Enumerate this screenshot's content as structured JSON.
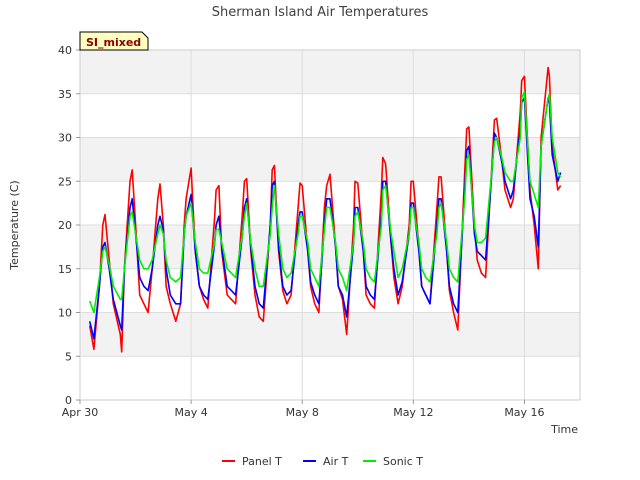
{
  "chart_data": {
    "type": "line",
    "title": "Sherman Island Air Temperatures",
    "xlabel": "Time",
    "ylabel": "Temperature (C)",
    "badge": "SI_mixed",
    "ylim": [
      0,
      40
    ],
    "yticks": [
      0,
      5,
      10,
      15,
      20,
      25,
      30,
      35,
      40
    ],
    "xlim": [
      0,
      18.0
    ],
    "xticks": [
      {
        "value": 0,
        "label": "Apr 30"
      },
      {
        "value": 4,
        "label": "May 4"
      },
      {
        "value": 8,
        "label": "May 8"
      },
      {
        "value": 12,
        "label": "May 12"
      },
      {
        "value": 16,
        "label": "May 16"
      }
    ],
    "x_unit": "days since Apr 30 00:00",
    "grid": true,
    "banded_background": true,
    "legend_position": "bottom-center",
    "series": [
      {
        "name": "Panel T",
        "color": "#ff0000",
        "x": [
          0.35,
          0.5,
          0.7,
          0.82,
          0.9,
          1.05,
          1.2,
          1.45,
          1.5,
          1.6,
          1.8,
          1.88,
          2.0,
          2.15,
          2.3,
          2.45,
          2.6,
          2.8,
          2.88,
          3.0,
          3.1,
          3.25,
          3.45,
          3.62,
          3.75,
          3.82,
          4.0,
          4.15,
          4.3,
          4.45,
          4.6,
          4.85,
          4.9,
          5.0,
          5.1,
          5.3,
          5.45,
          5.6,
          5.85,
          5.92,
          6.0,
          6.15,
          6.3,
          6.45,
          6.6,
          6.85,
          6.92,
          7.0,
          7.15,
          7.3,
          7.45,
          7.6,
          7.85,
          7.92,
          8.0,
          8.2,
          8.3,
          8.45,
          8.6,
          8.8,
          8.88,
          9.0,
          9.2,
          9.3,
          9.45,
          9.6,
          9.85,
          9.9,
          10.0,
          10.2,
          10.3,
          10.45,
          10.6,
          10.85,
          10.9,
          11.0,
          11.2,
          11.3,
          11.45,
          11.6,
          11.85,
          11.92,
          12.0,
          12.2,
          12.3,
          12.45,
          12.6,
          12.85,
          12.92,
          13.0,
          13.2,
          13.3,
          13.45,
          13.6,
          13.85,
          13.92,
          14.0,
          14.2,
          14.3,
          14.45,
          14.6,
          14.85,
          14.92,
          15.0,
          15.2,
          15.3,
          15.5,
          15.6,
          15.85,
          15.9,
          16.0,
          16.2,
          16.35,
          16.5,
          16.6,
          16.85,
          16.9,
          17.0,
          17.2,
          17.3
        ],
        "y": [
          8.5,
          5.8,
          13.0,
          20.0,
          21.2,
          16.0,
          11.0,
          7.5,
          5.5,
          15.0,
          25.0,
          26.3,
          20.0,
          12.0,
          11.0,
          10.0,
          15.0,
          23.0,
          24.7,
          20.0,
          13.0,
          11.0,
          9.0,
          11.0,
          20.0,
          23.0,
          26.5,
          17.0,
          13.0,
          11.5,
          10.5,
          21.0,
          24.0,
          24.5,
          17.0,
          12.0,
          11.5,
          11.0,
          21.5,
          25.0,
          25.3,
          17.0,
          12.0,
          9.5,
          9.0,
          20.0,
          26.3,
          26.8,
          17.0,
          12.5,
          11.0,
          12.0,
          22.0,
          24.8,
          24.5,
          17.0,
          13.0,
          11.0,
          10.0,
          22.0,
          24.5,
          25.8,
          17.5,
          13.0,
          11.5,
          7.5,
          20.0,
          25.0,
          24.8,
          17.0,
          12.0,
          11.0,
          10.5,
          24.0,
          27.7,
          27.0,
          18.0,
          14.0,
          11.0,
          13.0,
          20.0,
          25.0,
          25.0,
          17.5,
          13.0,
          12.0,
          11.0,
          22.0,
          25.5,
          25.5,
          17.0,
          12.5,
          10.0,
          8.0,
          26.0,
          31.0,
          31.2,
          20.0,
          16.0,
          14.5,
          14.0,
          28.0,
          32.0,
          32.2,
          27.0,
          24.0,
          22.0,
          23.0,
          33.0,
          36.5,
          37.0,
          24.0,
          20.0,
          15.0,
          30.0,
          38.0,
          37.0,
          29.0,
          24.0,
          24.5
        ]
      },
      {
        "name": "Air T",
        "color": "#0000ff",
        "x": [
          0.35,
          0.5,
          0.7,
          0.82,
          0.9,
          1.05,
          1.2,
          1.45,
          1.5,
          1.6,
          1.8,
          1.88,
          2.0,
          2.15,
          2.3,
          2.45,
          2.6,
          2.8,
          2.88,
          3.0,
          3.1,
          3.25,
          3.45,
          3.62,
          3.75,
          3.82,
          4.0,
          4.15,
          4.3,
          4.45,
          4.6,
          4.85,
          4.9,
          5.0,
          5.1,
          5.3,
          5.45,
          5.6,
          5.85,
          5.92,
          6.0,
          6.15,
          6.3,
          6.45,
          6.6,
          6.85,
          6.92,
          7.0,
          7.15,
          7.3,
          7.45,
          7.6,
          7.85,
          7.92,
          8.0,
          8.2,
          8.3,
          8.45,
          8.6,
          8.8,
          8.88,
          9.0,
          9.2,
          9.3,
          9.45,
          9.6,
          9.85,
          9.9,
          10.0,
          10.2,
          10.3,
          10.45,
          10.6,
          10.85,
          10.9,
          11.0,
          11.2,
          11.3,
          11.45,
          11.6,
          11.85,
          11.92,
          12.0,
          12.2,
          12.3,
          12.45,
          12.6,
          12.85,
          12.92,
          13.0,
          13.2,
          13.3,
          13.45,
          13.6,
          13.85,
          13.92,
          14.0,
          14.2,
          14.3,
          14.45,
          14.6,
          14.85,
          14.92,
          15.0,
          15.2,
          15.3,
          15.5,
          15.6,
          15.85,
          15.9,
          16.0,
          16.2,
          16.35,
          16.5,
          16.6,
          16.85,
          16.9,
          17.0,
          17.2,
          17.3
        ],
        "y": [
          9.0,
          7.0,
          13.0,
          17.5,
          18.0,
          15.0,
          11.5,
          8.5,
          8.0,
          15.0,
          22.0,
          23.0,
          19.0,
          14.0,
          13.0,
          12.5,
          15.0,
          20.0,
          21.0,
          19.5,
          15.0,
          12.0,
          11.0,
          11.0,
          19.0,
          21.0,
          23.5,
          17.0,
          13.0,
          12.0,
          11.5,
          18.0,
          20.0,
          21.0,
          17.5,
          13.0,
          12.5,
          12.0,
          19.0,
          22.0,
          23.0,
          17.5,
          13.0,
          11.0,
          10.5,
          20.0,
          24.5,
          25.0,
          17.5,
          13.0,
          12.0,
          12.5,
          20.0,
          21.5,
          21.5,
          17.0,
          13.5,
          12.0,
          11.0,
          20.0,
          23.0,
          23.0,
          17.5,
          13.0,
          12.0,
          9.5,
          18.0,
          22.0,
          22.0,
          17.0,
          13.0,
          12.0,
          11.5,
          21.0,
          25.0,
          25.0,
          18.0,
          15.0,
          12.0,
          13.5,
          19.0,
          22.5,
          22.5,
          17.0,
          13.0,
          12.0,
          11.0,
          20.0,
          23.0,
          23.0,
          17.0,
          13.0,
          11.0,
          10.0,
          24.0,
          28.5,
          29.0,
          19.0,
          17.0,
          16.5,
          16.0,
          27.0,
          30.5,
          30.0,
          27.0,
          25.0,
          23.0,
          24.0,
          31.0,
          34.0,
          34.5,
          23.0,
          21.0,
          17.5,
          29.0,
          34.5,
          34.0,
          28.0,
          25.0,
          26.0
        ]
      },
      {
        "name": "Sonic T",
        "color": "#00ee00",
        "x": [
          0.35,
          0.5,
          0.7,
          0.82,
          0.9,
          1.05,
          1.2,
          1.45,
          1.5,
          1.6,
          1.8,
          1.88,
          2.0,
          2.15,
          2.3,
          2.45,
          2.6,
          2.8,
          2.88,
          3.0,
          3.1,
          3.25,
          3.45,
          3.62,
          3.75,
          3.82,
          4.0,
          4.15,
          4.3,
          4.45,
          4.6,
          4.85,
          4.9,
          5.0,
          5.1,
          5.3,
          5.45,
          5.6,
          5.85,
          5.92,
          6.0,
          6.15,
          6.3,
          6.45,
          6.6,
          6.85,
          6.92,
          7.0,
          7.15,
          7.3,
          7.45,
          7.6,
          7.85,
          7.92,
          8.0,
          8.2,
          8.3,
          8.45,
          8.6,
          8.8,
          8.88,
          9.0,
          9.2,
          9.3,
          9.45,
          9.6,
          9.85,
          9.9,
          10.0,
          10.2,
          10.3,
          10.45,
          10.6,
          10.85,
          10.9,
          11.0,
          11.2,
          11.3,
          11.45,
          11.6,
          11.85,
          11.92,
          12.0,
          12.2,
          12.3,
          12.45,
          12.6,
          12.85,
          12.92,
          13.0,
          13.2,
          13.3,
          13.45,
          13.6,
          13.85,
          13.92,
          14.0,
          14.2,
          14.3,
          14.45,
          14.6,
          14.85,
          14.92,
          15.0,
          15.2,
          15.3,
          15.5,
          15.6,
          15.85,
          15.9,
          16.0,
          16.2,
          16.35,
          16.5,
          16.6,
          16.85,
          16.9,
          17.0,
          17.2,
          17.3
        ],
        "y": [
          11.3,
          10.0,
          14.0,
          17.0,
          17.5,
          15.5,
          13.0,
          11.5,
          11.5,
          15.0,
          21.0,
          21.5,
          19.0,
          16.0,
          15.0,
          15.0,
          16.0,
          19.0,
          20.0,
          19.0,
          16.0,
          14.0,
          13.5,
          14.0,
          19.0,
          21.0,
          22.5,
          18.0,
          15.0,
          14.5,
          14.5,
          18.0,
          19.5,
          19.5,
          18.0,
          15.0,
          14.5,
          14.0,
          19.0,
          21.0,
          22.5,
          18.0,
          15.0,
          13.0,
          13.0,
          19.0,
          22.0,
          24.5,
          19.0,
          15.0,
          14.0,
          14.5,
          19.0,
          21.0,
          21.0,
          18.0,
          15.0,
          14.0,
          13.0,
          19.5,
          22.0,
          22.0,
          18.0,
          15.0,
          14.0,
          12.5,
          18.0,
          21.0,
          21.5,
          18.0,
          15.0,
          14.0,
          13.5,
          20.0,
          24.0,
          24.5,
          19.0,
          17.0,
          14.0,
          15.0,
          19.0,
          22.0,
          22.0,
          18.0,
          15.0,
          14.0,
          13.5,
          19.0,
          22.0,
          22.5,
          18.0,
          15.0,
          14.0,
          13.5,
          23.0,
          27.5,
          28.0,
          20.0,
          18.0,
          18.0,
          18.5,
          27.0,
          29.5,
          30.0,
          27.5,
          26.0,
          25.0,
          25.0,
          30.0,
          34.5,
          35.2,
          25.0,
          23.5,
          22.0,
          29.0,
          34.5,
          35.0,
          30.0,
          26.0,
          25.5
        ]
      }
    ]
  }
}
